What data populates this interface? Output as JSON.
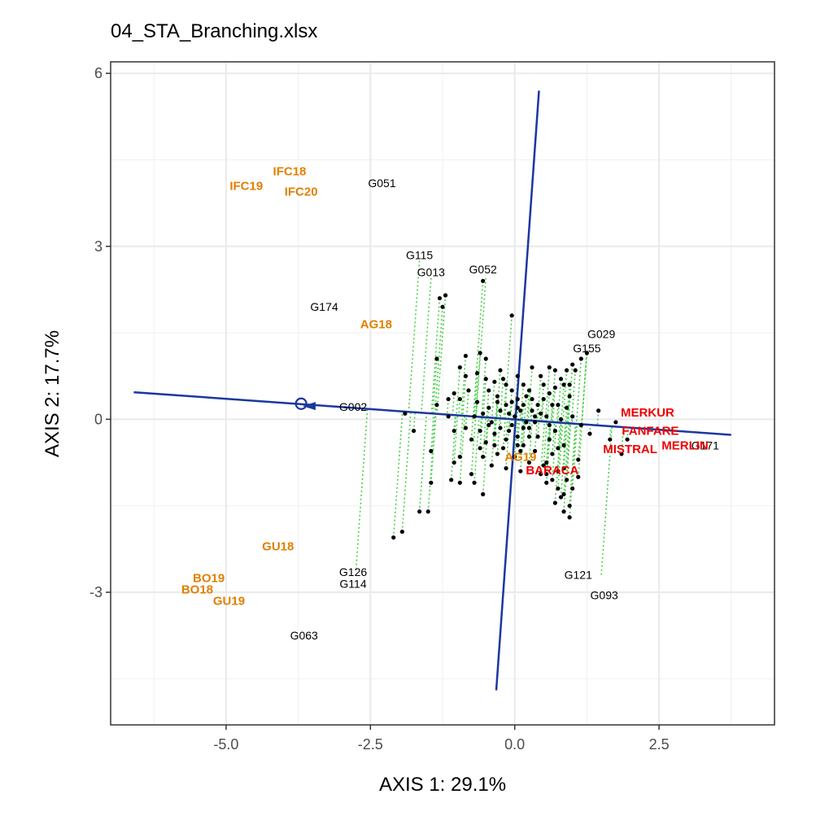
{
  "chart_data": {
    "type": "scatter",
    "title": "04_STA_Branching.xlsx",
    "xlabel": "AXIS 1: 29.1%",
    "ylabel": "AXIS 2: 17.7%",
    "xlim": [
      -7.0,
      4.5
    ],
    "ylim": [
      -5.3,
      6.2
    ],
    "x_ticks": [
      -5.0,
      -2.5,
      0.0,
      2.5
    ],
    "x_tick_labels": [
      "-5.0",
      "-2.5",
      "0.0",
      "2.5"
    ],
    "y_ticks": [
      -3,
      0,
      3,
      6
    ],
    "y_tick_labels": [
      "-3",
      "0",
      "3",
      "6"
    ],
    "minor_x": [
      -6.25,
      -3.75,
      -1.25,
      1.25,
      3.75
    ],
    "minor_y": [
      -4.5,
      -1.5,
      1.5,
      4.5
    ],
    "grid": true,
    "ata_line": {
      "x1": -6.6,
      "y1": 0.47,
      "x2": 3.75,
      "y2": -0.27,
      "color": "#1a37a1"
    },
    "ata_perpendicular": {
      "x1": -0.32,
      "y1": -4.7,
      "x2": 0.42,
      "y2": 5.7,
      "color": "#1a37a1"
    },
    "mean_environment_point": {
      "x": -3.7,
      "y": 0.27
    },
    "arrow_tip": {
      "x": -3.45,
      "y": 0.23
    },
    "projection_color": "#4dd04d",
    "genotype_labels": [
      {
        "label": "G051",
        "x": -2.3,
        "y": 4.1
      },
      {
        "label": "G115",
        "x": -1.65,
        "y": 2.85
      },
      {
        "label": "G013",
        "x": -1.45,
        "y": 2.55
      },
      {
        "label": "G052",
        "x": -0.55,
        "y": 2.6
      },
      {
        "label": "G174",
        "x": -3.3,
        "y": 1.95
      },
      {
        "label": "G029",
        "x": 1.5,
        "y": 1.48
      },
      {
        "label": "G155",
        "x": 1.25,
        "y": 1.23
      },
      {
        "label": "G002",
        "x": -2.8,
        "y": 0.22
      },
      {
        "label": "G171",
        "x": 3.3,
        "y": -0.45
      },
      {
        "label": "G126",
        "x": -2.8,
        "y": -2.65
      },
      {
        "label": "G114",
        "x": -2.8,
        "y": -2.85
      },
      {
        "label": "G121",
        "x": 1.1,
        "y": -2.7
      },
      {
        "label": "G093",
        "x": 1.55,
        "y": -3.05
      },
      {
        "label": "G063",
        "x": -3.65,
        "y": -3.75
      }
    ],
    "environment_labels": [
      {
        "label": "IFC18",
        "x": -3.9,
        "y": 4.3,
        "color": "#e08000"
      },
      {
        "label": "IFC19",
        "x": -4.65,
        "y": 4.05,
        "color": "#e08000"
      },
      {
        "label": "IFC20",
        "x": -3.7,
        "y": 3.95,
        "color": "#e08000"
      },
      {
        "label": "AG18",
        "x": -2.4,
        "y": 1.65,
        "color": "#e08000"
      },
      {
        "label": "AG19",
        "x": 0.1,
        "y": -0.65,
        "color": "#e08000"
      },
      {
        "label": "GU18",
        "x": -4.1,
        "y": -2.2,
        "color": "#e08000"
      },
      {
        "label": "BO19",
        "x": -5.3,
        "y": -2.75,
        "color": "#e08000"
      },
      {
        "label": "BO18",
        "x": -5.5,
        "y": -2.95,
        "color": "#e08000"
      },
      {
        "label": "GU19",
        "x": -4.95,
        "y": -3.15,
        "color": "#e08000"
      },
      {
        "label": "MERKUR",
        "x": 2.3,
        "y": 0.12,
        "color": "#ee0000"
      },
      {
        "label": "FANFARE",
        "x": 2.35,
        "y": -0.2,
        "color": "#ee0000"
      },
      {
        "label": "MERLIN",
        "x": 2.95,
        "y": -0.45,
        "color": "#ee0000"
      },
      {
        "label": "MISTRAL",
        "x": 2.0,
        "y": -0.52,
        "color": "#ee0000"
      },
      {
        "label": "BARACA",
        "x": 0.65,
        "y": -0.88,
        "color": "#ee0000"
      }
    ],
    "labeled_genotype_projections": [
      {
        "x": -1.65,
        "y": 2.75
      },
      {
        "x": -1.45,
        "y": 2.45
      },
      {
        "x": -0.5,
        "y": 2.45
      },
      {
        "x": 1.25,
        "y": 1.2
      },
      {
        "x": -2.75,
        "y": 0.2
      },
      {
        "x": -2.75,
        "y": -2.6
      },
      {
        "x": 1.5,
        "y": -2.7
      }
    ],
    "genotype_points": [
      [
        -0.05,
        1.8
      ],
      [
        -0.55,
        2.4
      ],
      [
        -1.2,
        2.15
      ],
      [
        -1.3,
        2.1
      ],
      [
        -1.25,
        1.95
      ],
      [
        -0.85,
        1.1
      ],
      [
        -0.95,
        0.9
      ],
      [
        -1.35,
        1.05
      ],
      [
        -0.6,
        1.15
      ],
      [
        -0.5,
        1.05
      ],
      [
        -0.5,
        0.7
      ],
      [
        -0.35,
        0.65
      ],
      [
        -0.2,
        0.7
      ],
      [
        -0.3,
        0.4
      ],
      [
        -0.15,
        0.6
      ],
      [
        -0.05,
        0.5
      ],
      [
        0.05,
        0.35
      ],
      [
        -0.25,
        0.85
      ],
      [
        -0.65,
        0.8
      ],
      [
        -0.85,
        0.75
      ],
      [
        -1.05,
        0.45
      ],
      [
        -0.65,
        0.3
      ],
      [
        -0.45,
        0.2
      ],
      [
        -0.25,
        0.15
      ],
      [
        -0.1,
        0.1
      ],
      [
        0.05,
        0.2
      ],
      [
        -1.9,
        0.1
      ],
      [
        -1.75,
        -0.2
      ],
      [
        -1.45,
        -0.55
      ],
      [
        -1.05,
        -0.2
      ],
      [
        -0.95,
        -0.65
      ],
      [
        -0.55,
        -0.65
      ],
      [
        -0.5,
        -0.4
      ],
      [
        -0.35,
        -0.25
      ],
      [
        -0.2,
        -0.5
      ],
      [
        -0.05,
        -0.1
      ],
      [
        0.05,
        -0.3
      ],
      [
        0.15,
        -0.45
      ],
      [
        0.25,
        -0.15
      ],
      [
        0.35,
        -0.55
      ],
      [
        0.5,
        -0.8
      ],
      [
        0.55,
        -0.95
      ],
      [
        0.65,
        -1.05
      ],
      [
        0.75,
        -1.2
      ],
      [
        0.85,
        -1.3
      ],
      [
        0.95,
        -1.5
      ],
      [
        0.95,
        -1.7
      ],
      [
        0.85,
        -1.6
      ],
      [
        0.8,
        -1.35
      ],
      [
        1.0,
        -1.2
      ],
      [
        1.1,
        -1.0
      ],
      [
        1.1,
        -0.7
      ],
      [
        1.25,
        1.15
      ],
      [
        1.15,
        1.05
      ],
      [
        1.0,
        0.95
      ],
      [
        0.9,
        0.85
      ],
      [
        0.8,
        0.7
      ],
      [
        0.7,
        0.55
      ],
      [
        0.6,
        0.45
      ],
      [
        0.5,
        0.35
      ],
      [
        0.4,
        0.25
      ],
      [
        0.3,
        0.15
      ],
      [
        1.05,
        0.85
      ],
      [
        0.95,
        0.6
      ],
      [
        0.75,
        0.25
      ],
      [
        0.55,
        0.05
      ],
      [
        0.35,
        -0.05
      ],
      [
        0.15,
        -0.15
      ],
      [
        1.45,
        0.15
      ],
      [
        1.75,
        -0.05
      ],
      [
        1.95,
        -0.35
      ],
      [
        1.85,
        -0.6
      ],
      [
        1.65,
        -0.35
      ],
      [
        0.45,
        0.75
      ],
      [
        0.25,
        0.5
      ],
      [
        -0.05,
        0.3
      ],
      [
        -1.95,
        -1.95
      ],
      [
        -2.1,
        -2.05
      ],
      [
        -1.65,
        -1.6
      ],
      [
        -1.5,
        -1.6
      ],
      [
        -1.45,
        -1.1
      ],
      [
        -1.1,
        -1.05
      ],
      [
        -1.05,
        -0.75
      ],
      [
        -0.95,
        -1.1
      ],
      [
        -0.75,
        -0.95
      ],
      [
        -0.7,
        -1.1
      ],
      [
        -0.55,
        -1.3
      ],
      [
        -0.4,
        -0.8
      ],
      [
        -0.3,
        -0.6
      ],
      [
        -0.15,
        -0.85
      ],
      [
        0.0,
        -0.65
      ],
      [
        0.1,
        -0.9
      ],
      [
        0.25,
        -0.75
      ],
      [
        0.45,
        -0.95
      ],
      [
        0.55,
        -0.75
      ],
      [
        0.65,
        -0.6
      ],
      [
        0.75,
        -0.5
      ],
      [
        0.85,
        -0.45
      ],
      [
        0.6,
        -0.35
      ],
      [
        0.7,
        -0.2
      ],
      [
        0.8,
        0.0
      ],
      [
        1.0,
        0.05
      ],
      [
        1.15,
        -0.1
      ],
      [
        1.3,
        -0.25
      ],
      [
        0.45,
        0.1
      ],
      [
        0.25,
        -0.3
      ],
      [
        0.05,
        -0.45
      ],
      [
        -0.15,
        -0.35
      ],
      [
        -0.35,
        -0.45
      ],
      [
        -0.6,
        -0.5
      ],
      [
        -0.75,
        -0.35
      ],
      [
        -0.85,
        -0.15
      ],
      [
        -0.7,
        0.05
      ],
      [
        -0.55,
        0.1
      ],
      [
        -0.4,
        -0.05
      ],
      [
        -0.3,
        0.3
      ],
      [
        -0.15,
        0.25
      ],
      [
        0.0,
        0.05
      ],
      [
        0.15,
        0.25
      ],
      [
        0.3,
        0.35
      ],
      [
        0.5,
        0.6
      ],
      [
        0.6,
        0.9
      ],
      [
        0.7,
        0.85
      ],
      [
        0.85,
        0.6
      ],
      [
        0.95,
        0.4
      ],
      [
        0.9,
        0.2
      ],
      [
        0.65,
        0.25
      ],
      [
        0.15,
        0.6
      ],
      [
        -0.95,
        0.35
      ],
      [
        -0.8,
        0.5
      ],
      [
        -1.15,
        0.35
      ],
      [
        -0.45,
        0.5
      ],
      [
        0.2,
        -0.05
      ],
      [
        0.4,
        -0.3
      ],
      [
        0.6,
        -0.1
      ],
      [
        0.35,
        0.05
      ],
      [
        -0.25,
        -0.15
      ],
      [
        0.1,
        0.15
      ],
      [
        -0.1,
        -0.2
      ],
      [
        0.2,
        0.4
      ],
      [
        0.1,
        -0.55
      ],
      [
        -0.45,
        -0.1
      ],
      [
        -0.6,
        -0.2
      ],
      [
        0.75,
        -0.9
      ],
      [
        0.9,
        -1.05
      ],
      [
        0.7,
        -1.45
      ],
      [
        0.55,
        -1.1
      ],
      [
        0.85,
        -0.85
      ],
      [
        -1.35,
        0.25
      ],
      [
        -1.15,
        0.05
      ],
      [
        0.05,
        0.75
      ],
      [
        0.3,
        0.9
      ]
    ]
  }
}
